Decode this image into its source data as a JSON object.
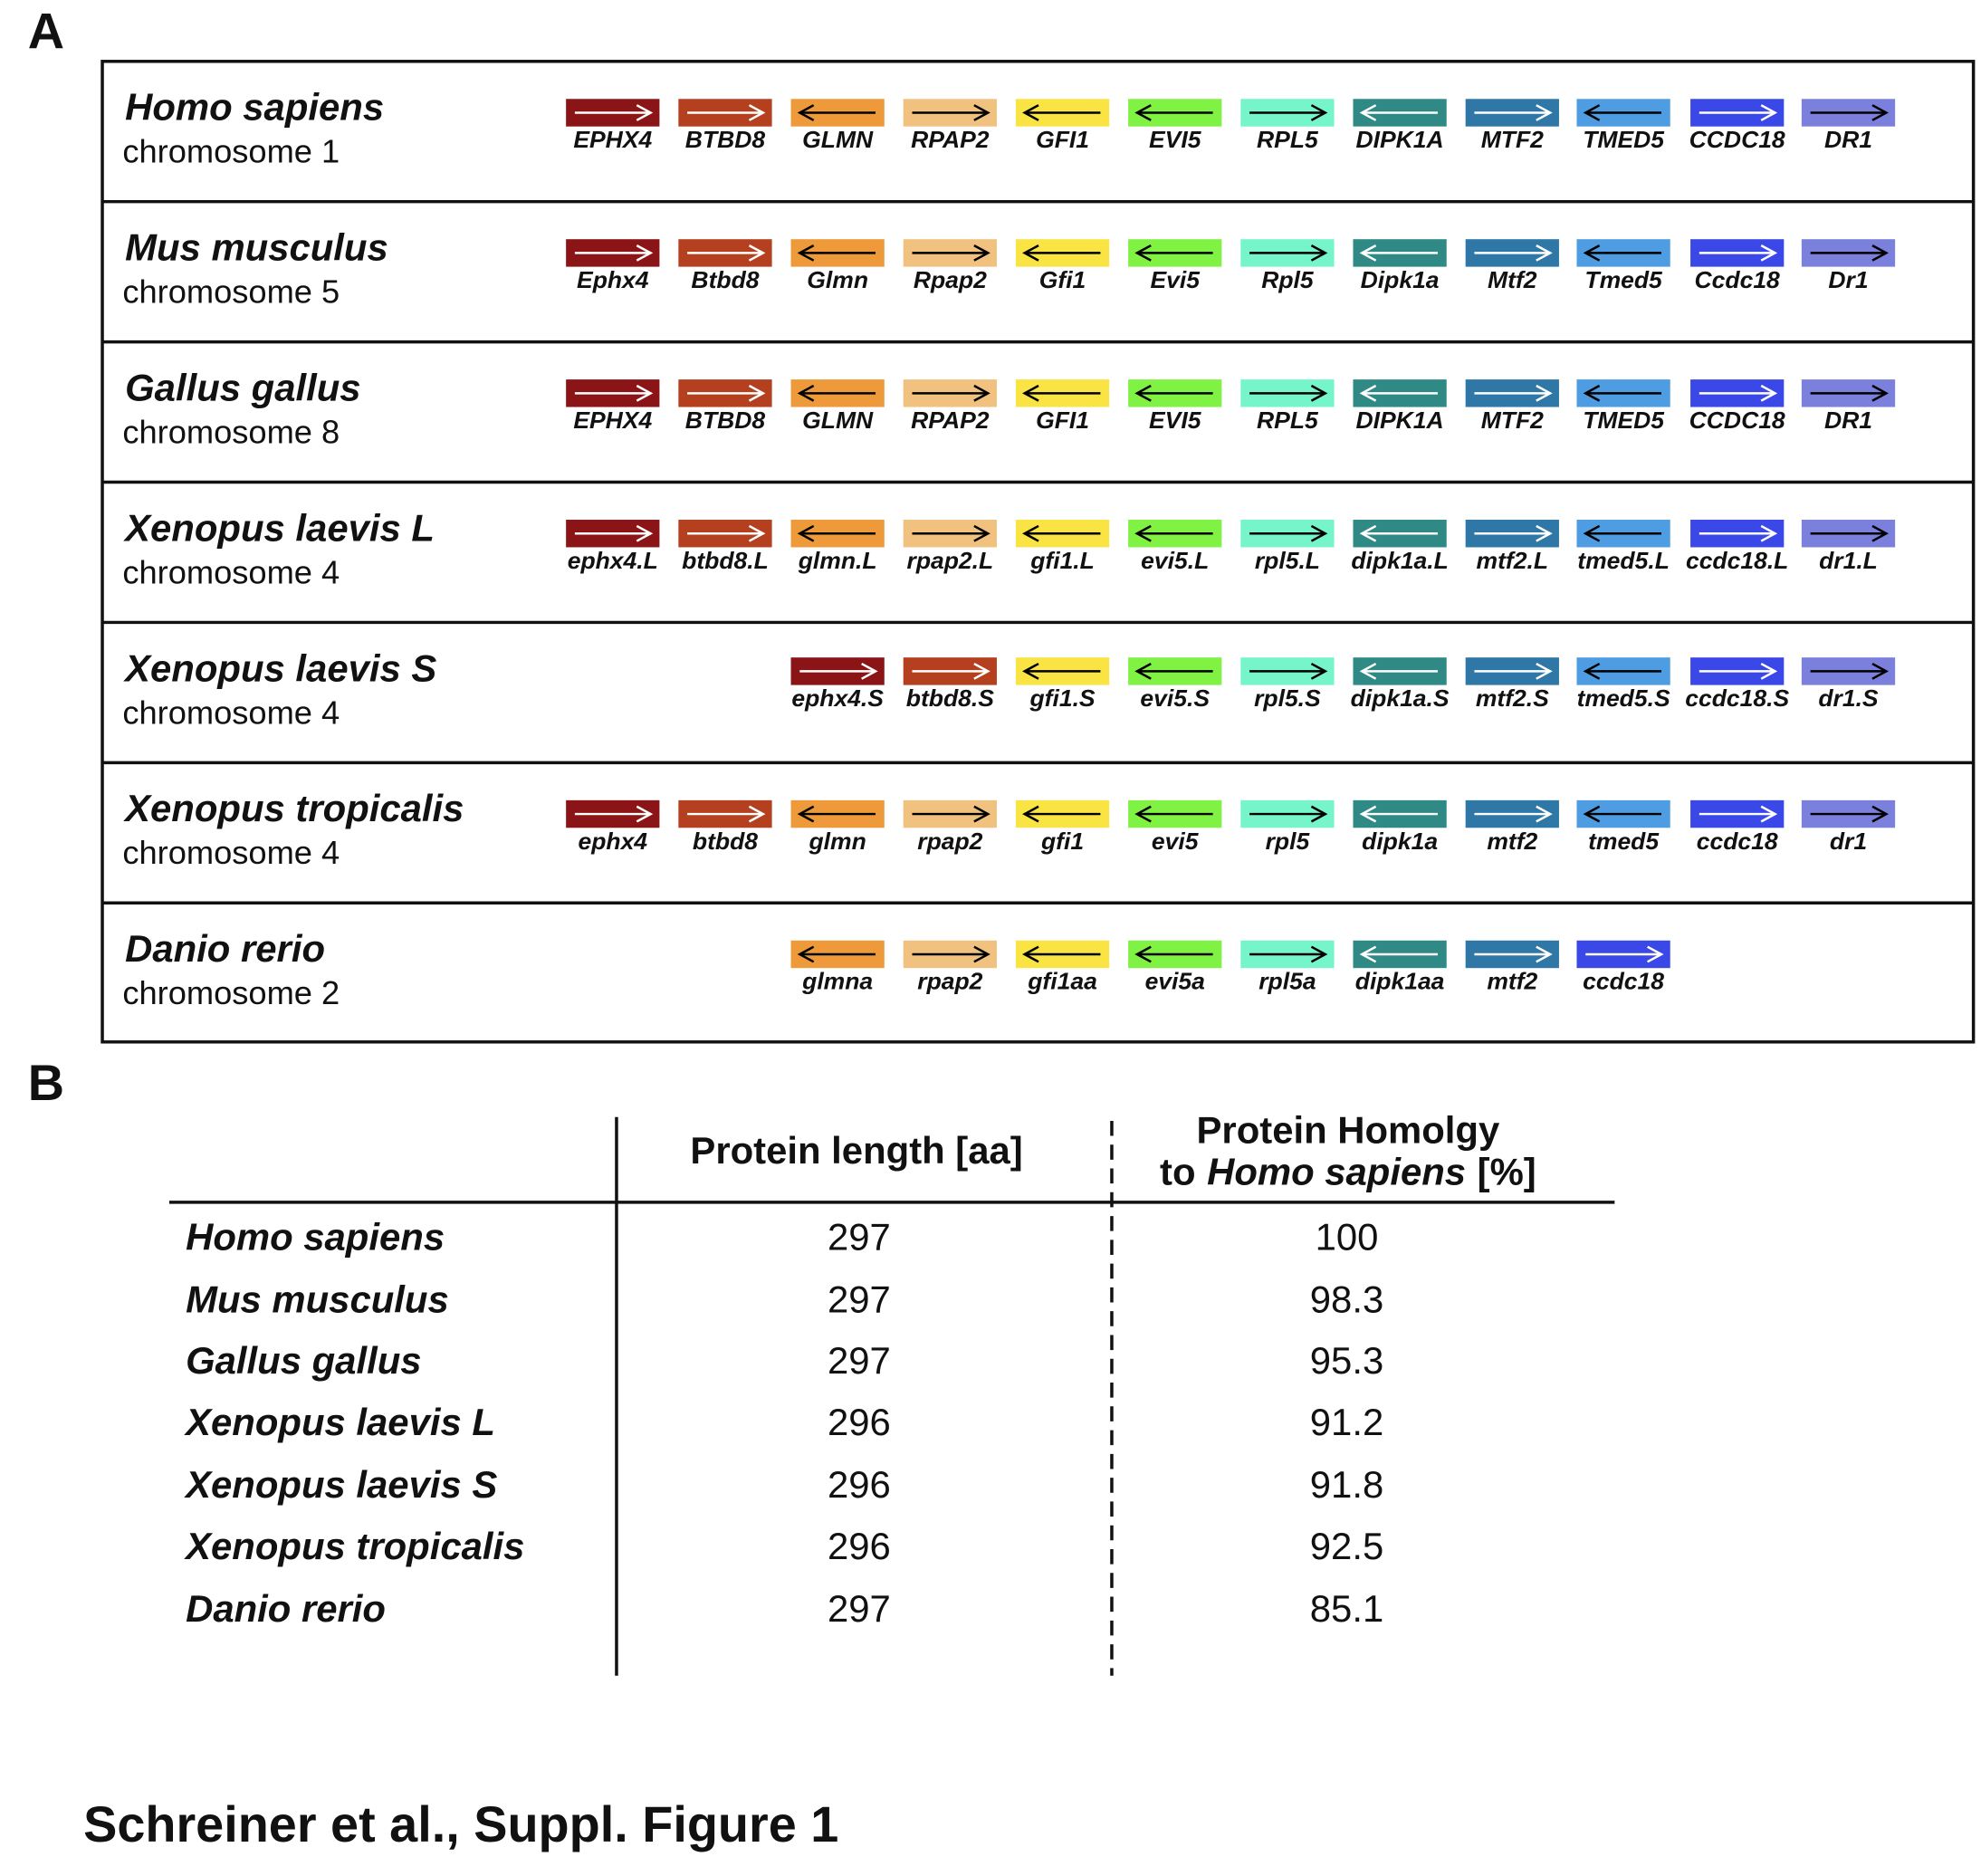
{
  "panel_a": {
    "label": "A",
    "rows": [
      {
        "species": "Homo sapiens",
        "chromosome": "chromosome 1",
        "genes": [
          "EPHX4",
          "BTBD8",
          "GLMN",
          "RPAP2",
          "GFI1",
          "EVI5",
          "RPL5",
          "DIPK1A",
          "MTF2",
          "TMED5",
          "CCDC18",
          "DR1"
        ]
      },
      {
        "species": "Mus musculus",
        "chromosome": "chromosome 5",
        "genes": [
          "Ephx4",
          "Btbd8",
          "Glmn",
          "Rpap2",
          "Gfi1",
          "Evi5",
          "Rpl5",
          "Dipk1a",
          "Mtf2",
          "Tmed5",
          "Ccdc18",
          "Dr1"
        ]
      },
      {
        "species": "Gallus gallus",
        "chromosome": "chromosome 8",
        "genes": [
          "EPHX4",
          "BTBD8",
          "GLMN",
          "RPAP2",
          "GFI1",
          "EVI5",
          "RPL5",
          "DIPK1A",
          "MTF2",
          "TMED5",
          "CCDC18",
          "DR1"
        ]
      },
      {
        "species": "Xenopus laevis L",
        "chromosome": "chromosome 4",
        "genes": [
          "ephx4.L",
          "btbd8.L",
          "glmn.L",
          "rpap2.L",
          "gfi1.L",
          "evi5.L",
          "rpl5.L",
          "dipk1a.L",
          "mtf2.L",
          "tmed5.L",
          "ccdc18.L",
          "dr1.L"
        ]
      },
      {
        "species": "Xenopus laevis S",
        "chromosome": "chromosome 4",
        "genes": [
          "ephx4.S",
          "btbd8.S",
          "gfi1.S",
          "evi5.S",
          "rpl5.S",
          "dipk1a.S",
          "mtf2.S",
          "tmed5.S",
          "ccdc18.S",
          "dr1.S"
        ]
      },
      {
        "species": "Xenopus tropicalis",
        "chromosome": "chromosome 4",
        "genes": [
          "ephx4",
          "btbd8",
          "glmn",
          "rpap2",
          "gfi1",
          "evi5",
          "rpl5",
          "dipk1a",
          "mtf2",
          "tmed5",
          "ccdc18",
          "dr1"
        ]
      },
      {
        "species": "Danio rerio",
        "chromosome": "chromosome 2",
        "genes": [
          "glmna",
          "rpap2",
          "gfi1aa",
          "evi5a",
          "rpl5a",
          "dipk1aa",
          "mtf2",
          "ccdc18"
        ]
      }
    ]
  },
  "panel_b": {
    "label": "B",
    "header": {
      "length": "Protein length [aa]",
      "homology_line1": "Protein Homolgy",
      "homology_prefix": "to",
      "homology_species": "Homo sapiens",
      "homology_suffix": "[%]"
    },
    "rows": [
      [
        "Homo sapiens",
        297,
        100
      ],
      [
        "Mus musculus",
        297,
        98.3
      ],
      [
        "Gallus gallus",
        297,
        95.3
      ],
      [
        "Xenopus laevis L",
        296,
        91.2
      ],
      [
        "Xenopus laevis S",
        296,
        91.8
      ],
      [
        "Xenopus tropicalis",
        296,
        92.5
      ],
      [
        "Danio rerio",
        297,
        85.1
      ]
    ]
  },
  "footer": "Schreiner et al., Suppl. Figure 1"
}
